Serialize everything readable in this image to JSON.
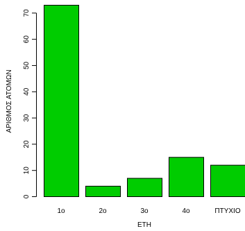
{
  "chart_data": {
    "type": "bar",
    "categories": [
      "1o",
      "2o",
      "3o",
      "4o",
      "ΠΤΥΧΙΟ"
    ],
    "values": [
      73,
      4,
      7,
      15,
      12
    ],
    "xlabel": "ΕΤΗ",
    "ylabel": "ΑΡΙΘΜΟΣ ΑΤΟΜΩΝ",
    "ylim": [
      0,
      73
    ],
    "yticks": [
      0,
      10,
      20,
      30,
      40,
      50,
      60,
      70
    ],
    "bar_color": "#00cc00",
    "grid": false
  }
}
